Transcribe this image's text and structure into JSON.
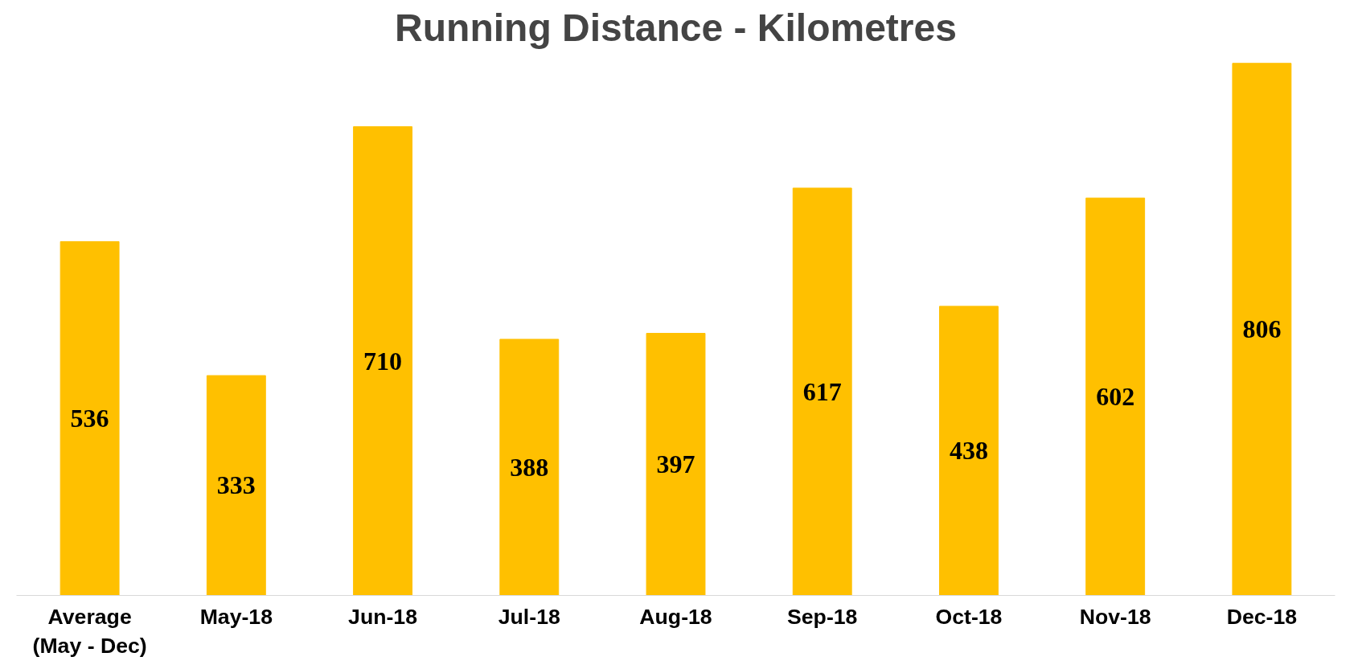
{
  "chart_data": {
    "type": "bar",
    "title": "Running Distance - Kilometres",
    "categories": [
      "Average\n(May - Dec)",
      "May-18",
      "Jun-18",
      "Jul-18",
      "Aug-18",
      "Sep-18",
      "Oct-18",
      "Nov-18",
      "Dec-18"
    ],
    "values": [
      536,
      333,
      710,
      388,
      397,
      617,
      438,
      602,
      806
    ],
    "color": "#ffc000",
    "data_labels": true,
    "tick_labels": "x"
  }
}
